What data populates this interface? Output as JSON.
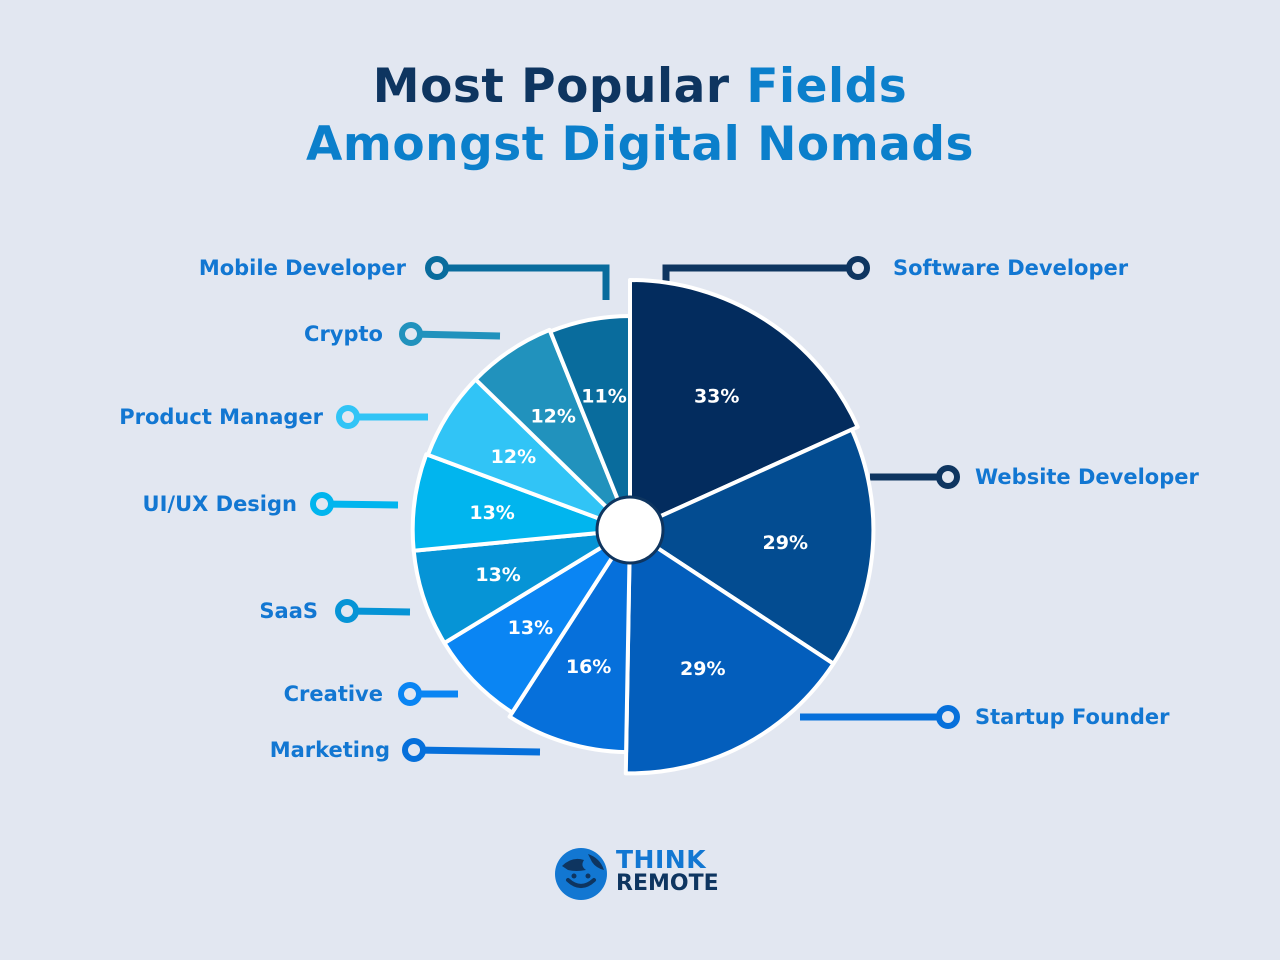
{
  "title": {
    "line1_dark": "Most Popular ",
    "line1_blue": "Fields",
    "line2": "Amongst Digital Nomads"
  },
  "chart_data": {
    "type": "pie",
    "donut_hole": true,
    "title": "Most Popular Fields Amongst Digital Nomads",
    "categories": [
      "Software Developer",
      "Website Developer",
      "Startup Founder",
      "Marketing",
      "Creative",
      "SaaS",
      "UI/UX Design",
      "Product Manager",
      "Crypto",
      "Mobile Developer"
    ],
    "values": [
      33,
      29,
      29,
      16,
      13,
      13,
      13,
      12,
      12,
      11
    ],
    "value_labels": [
      "33%",
      "29%",
      "29%",
      "16%",
      "13%",
      "13%",
      "13%",
      "12%",
      "12%",
      "11%"
    ],
    "colors": [
      "#032c5e",
      "#034c91",
      "#035ebc",
      "#0670db",
      "#0a85f3",
      "#0694d6",
      "#01b5ee",
      "#31c4f6",
      "#2192bd",
      "#096c9d"
    ],
    "label_color": "#1277d2"
  },
  "logo": {
    "line1": "THINK",
    "line2": "REMOTE"
  }
}
